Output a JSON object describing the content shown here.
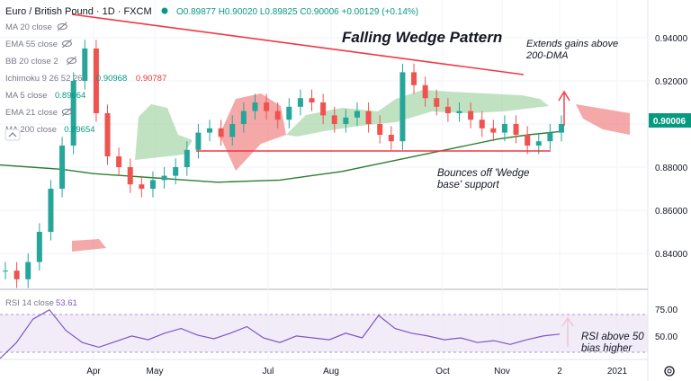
{
  "header": {
    "symbol": "Euro / British Pound · 1D · FXCM",
    "ohlc": "O0.89877 H0.90020 L0.89825 C0.90006 +0.00129 (+0.14%)",
    "price_badge": "0.90006"
  },
  "legend": [
    {
      "label": "MA 20 close",
      "value": "",
      "hidden": true
    },
    {
      "label": "EMA 55 close",
      "value": "",
      "hidden": true
    },
    {
      "label": "BB 20 close 2",
      "value": "",
      "hidden": true
    },
    {
      "label": "Ichimoku 9 26 52 26",
      "value": "0.90968",
      "value2": "0.90787"
    },
    {
      "label": "MA 5 close",
      "value": "0.89664"
    },
    {
      "label": "EMA 21 close",
      "value": "",
      "hidden": true
    },
    {
      "label": "MA 200 close",
      "value": "0.89654"
    }
  ],
  "rsi": {
    "label": "RSI 14 close",
    "value": "53.61",
    "ticks": [
      "75.00",
      "50.00"
    ],
    "annotation_line1": "RSI above 50",
    "annotation_line2": "bias higher"
  },
  "annotations": {
    "title": "Falling Wedge Pattern",
    "extends_line1": "Extends gains above",
    "extends_line2": "200-DMA",
    "bounce_line1": "Bounces off 'Wedge",
    "bounce_line2": "base' support"
  },
  "chart_data": {
    "type": "candlestick",
    "price_ticks": [
      "0.94000",
      "0.92000",
      "0.90000",
      "0.88000",
      "0.86000",
      "0.84000"
    ],
    "x_labels": [
      "Apr",
      "May",
      "Jul",
      "Aug",
      "Oct",
      "Nov",
      "2",
      "2021"
    ],
    "closes": [
      0.832,
      0.828,
      0.836,
      0.85,
      0.87,
      0.89,
      0.92,
      0.935,
      0.905,
      0.885,
      0.88,
      0.872,
      0.87,
      0.874,
      0.876,
      0.88,
      0.888,
      0.896,
      0.898,
      0.894,
      0.9,
      0.906,
      0.91,
      0.906,
      0.902,
      0.908,
      0.912,
      0.91,
      0.904,
      0.9,
      0.903,
      0.906,
      0.9,
      0.895,
      0.892,
      0.924,
      0.918,
      0.912,
      0.908,
      0.905,
      0.906,
      0.902,
      0.898,
      0.896,
      0.9,
      0.895,
      0.89,
      0.892,
      0.896,
      0.9
    ],
    "ma200": [
      0.881,
      0.88,
      0.879,
      0.877,
      0.876,
      0.875,
      0.874,
      0.873,
      0.8735,
      0.874,
      0.876,
      0.878,
      0.881,
      0.884,
      0.887,
      0.89,
      0.893,
      0.895,
      0.8965
    ],
    "rsi_values": [
      28,
      45,
      70,
      80,
      58,
      45,
      40,
      46,
      52,
      48,
      55,
      60,
      53,
      49,
      55,
      62,
      50,
      45,
      52,
      50,
      48,
      55,
      50,
      74,
      60,
      55,
      52,
      48,
      50,
      45,
      47,
      43,
      48,
      52,
      54
    ]
  }
}
